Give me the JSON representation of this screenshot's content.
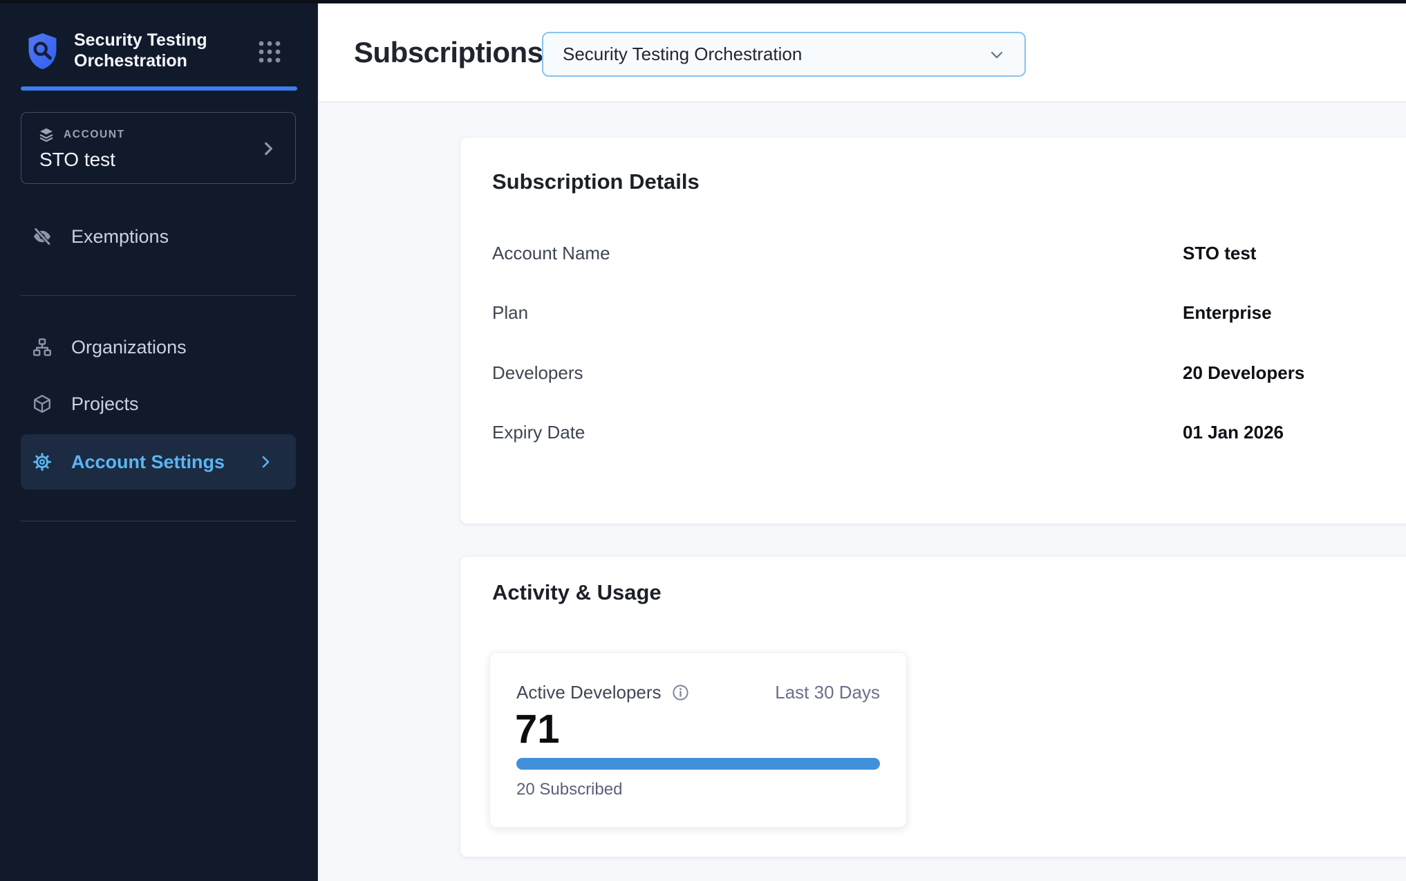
{
  "sidebar": {
    "product_title": "Security Testing Orchestration",
    "account_label": "ACCOUNT",
    "account_name": "STO test",
    "items": [
      {
        "label": "Exemptions",
        "icon": "eye-off-icon",
        "active": false
      },
      {
        "label": "Organizations",
        "icon": "org-chart-icon",
        "active": false
      },
      {
        "label": "Projects",
        "icon": "cube-icon",
        "active": false
      },
      {
        "label": "Account Settings",
        "icon": "gear-icon",
        "active": true
      }
    ]
  },
  "header": {
    "page_title": "Subscriptions",
    "module_selector_value": "Security Testing Orchestration"
  },
  "subscription_details": {
    "title": "Subscription Details",
    "rows": [
      {
        "label": "Account Name",
        "value": "STO test"
      },
      {
        "label": "Plan",
        "value": "Enterprise"
      },
      {
        "label": "Developers",
        "value": "20 Developers"
      },
      {
        "label": "Expiry Date",
        "value": "01 Jan 2026"
      }
    ]
  },
  "activity_usage": {
    "title": "Activity & Usage",
    "card": {
      "metric_label": "Active Developers",
      "period": "Last 30 Days",
      "value": "71",
      "subscribed": "20 Subscribed",
      "progress_percent": 100
    }
  },
  "colors": {
    "sidebar_bg": "#111a2b",
    "active_item_bg": "#1c2a42",
    "active_item_text": "#58b7f3",
    "brand_underline": "#3c7df2",
    "dropdown_border": "#87c3f0",
    "progress_fill": "#4290dc",
    "content_bg": "#f7f8fc"
  }
}
